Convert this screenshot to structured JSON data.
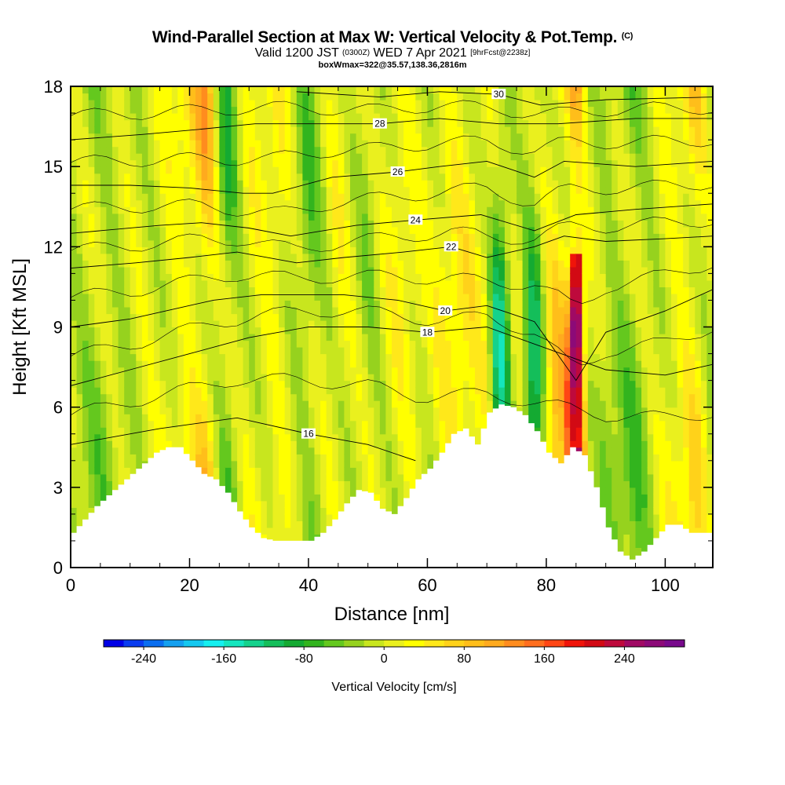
{
  "header": {
    "title": "Wind-Parallel Section at Max W: Vertical Velocity & Pot.Temp.",
    "copyright": "(C)",
    "valid_prefix": "Valid 1200 JST",
    "valid_utc": "(0300Z)",
    "valid_date": "WED 7 Apr 2021",
    "forecast": "[9hrFcst@2238z]",
    "boxinfo": "boxWmax=322@35.57,138.36,2816m"
  },
  "chart_data": {
    "type": "heatmap",
    "xlabel": "Distance [nm]",
    "ylabel": "Height [Kft MSL]",
    "xlim": [
      0,
      108
    ],
    "ylim": [
      0,
      18
    ],
    "xticks": [
      0,
      20,
      40,
      60,
      80,
      100
    ],
    "yticks": [
      0,
      3,
      6,
      9,
      12,
      15,
      18
    ],
    "terrain": {
      "x": [
        0,
        2,
        4,
        6,
        8,
        10,
        12,
        14,
        16,
        18,
        20,
        22,
        24,
        26,
        28,
        30,
        32,
        34,
        36,
        38,
        40,
        42,
        44,
        46,
        48,
        50,
        52,
        54,
        56,
        58,
        60,
        62,
        64,
        66,
        68,
        70,
        72,
        74,
        76,
        78,
        80,
        82,
        84,
        86,
        88,
        90,
        92,
        94,
        96,
        98,
        100,
        102,
        104,
        106,
        108
      ],
      "top": [
        1.3,
        1.8,
        2.3,
        2.7,
        3.1,
        3.5,
        3.9,
        4.3,
        4.5,
        4.5,
        4.0,
        3.5,
        3.3,
        2.8,
        2.1,
        1.5,
        1.1,
        1.0,
        1.0,
        1.0,
        1.0,
        1.3,
        1.8,
        2.4,
        2.9,
        2.8,
        2.2,
        2.0,
        2.6,
        3.3,
        3.7,
        4.3,
        5.0,
        5.2,
        4.6,
        5.8,
        6.1,
        6.0,
        5.7,
        5.1,
        4.3,
        3.9,
        4.5,
        4.2,
        3.0,
        1.5,
        0.6,
        0.3,
        0.6,
        1.1,
        1.6,
        1.6,
        1.3,
        1.3,
        1.3
      ]
    },
    "colorbar": {
      "label": "Vertical Velocity [cm/s]",
      "tick_values": [
        "-240",
        "-160",
        "-80",
        "0",
        "80",
        "160",
        "240"
      ],
      "min": -280,
      "max": 300,
      "colors": [
        "#0000e6",
        "#0a3cf0",
        "#0a6ef0",
        "#14a0f0",
        "#14c8f0",
        "#14f0f0",
        "#14e6be",
        "#14d28c",
        "#14be5a",
        "#14aa32",
        "#32b41e",
        "#64c81e",
        "#96d21e",
        "#c8e61e",
        "#eaf01e",
        "#ffff00",
        "#ffe81a",
        "#ffd21a",
        "#ffbe1a",
        "#ffaa1e",
        "#ff8c1e",
        "#ff6e1e",
        "#ff4614",
        "#f0140a",
        "#d20a14",
        "#be0a3c",
        "#a00a64",
        "#8c0a78",
        "#780a8c"
      ]
    },
    "w_field_description_values_cm_s": {
      "x_columns": [
        0,
        5,
        10,
        15,
        20,
        23,
        26,
        30,
        35,
        40,
        45,
        50,
        55,
        60,
        65,
        70,
        72,
        75,
        78,
        81,
        83,
        85,
        87,
        90,
        95,
        100,
        105,
        108
      ],
      "column_w": [
        -20,
        -40,
        -10,
        10,
        70,
        120,
        -90,
        20,
        40,
        -60,
        30,
        -30,
        40,
        10,
        60,
        20,
        -150,
        20,
        -140,
        100,
        90,
        300,
        10,
        -40,
        -60,
        20,
        80,
        -20
      ]
    },
    "theta_contours": [
      {
        "label": "16",
        "heights_at_x": [
          [
            0,
            4.6
          ],
          [
            15,
            5.2
          ],
          [
            28,
            5.6
          ],
          [
            40,
            5.0
          ],
          [
            50,
            4.6
          ],
          [
            58,
            4.0
          ]
        ]
      },
      {
        "label": "18",
        "heights_at_x": [
          [
            0,
            6.8
          ],
          [
            10,
            7.4
          ],
          [
            20,
            8.0
          ],
          [
            30,
            8.6
          ],
          [
            40,
            9.0
          ],
          [
            50,
            9.0
          ],
          [
            60,
            8.8
          ],
          [
            70,
            9.0
          ],
          [
            80,
            8.2
          ],
          [
            90,
            7.4
          ],
          [
            100,
            7.2
          ],
          [
            108,
            7.6
          ]
        ]
      },
      {
        "label": "20",
        "heights_at_x": [
          [
            0,
            9.0
          ],
          [
            10,
            9.3
          ],
          [
            16,
            9.6
          ],
          [
            24,
            10.0
          ],
          [
            32,
            10.2
          ],
          [
            46,
            10.2
          ],
          [
            55,
            10.0
          ],
          [
            63,
            9.6
          ],
          [
            70,
            9.8
          ],
          [
            78,
            9.2
          ],
          [
            85,
            7.0
          ],
          [
            90,
            8.8
          ],
          [
            100,
            9.6
          ],
          [
            108,
            10.4
          ]
        ]
      },
      {
        "label": "22",
        "heights_at_x": [
          [
            0,
            11.2
          ],
          [
            11,
            11.4
          ],
          [
            20,
            11.6
          ],
          [
            28,
            11.8
          ],
          [
            38,
            11.4
          ],
          [
            46,
            11.6
          ],
          [
            56,
            11.8
          ],
          [
            64,
            12.0
          ],
          [
            70,
            11.6
          ],
          [
            78,
            12.0
          ],
          [
            83,
            12.4
          ],
          [
            90,
            12.2
          ],
          [
            100,
            12.3
          ],
          [
            108,
            12.4
          ]
        ]
      },
      {
        "label": "24",
        "heights_at_x": [
          [
            0,
            12.5
          ],
          [
            15,
            12.8
          ],
          [
            22,
            12.9
          ],
          [
            30,
            12.7
          ],
          [
            37,
            12.4
          ],
          [
            48,
            12.8
          ],
          [
            58,
            13.0
          ],
          [
            69,
            13.2
          ],
          [
            78,
            12.6
          ],
          [
            85,
            13.2
          ],
          [
            95,
            13.4
          ],
          [
            108,
            13.6
          ]
        ]
      },
      {
        "label": "26",
        "heights_at_x": [
          [
            0,
            14.3
          ],
          [
            10,
            14.3
          ],
          [
            20,
            14.2
          ],
          [
            29,
            14.0
          ],
          [
            34,
            14.0
          ],
          [
            44,
            14.6
          ],
          [
            55,
            14.8
          ],
          [
            62,
            15.0
          ],
          [
            70,
            15.2
          ],
          [
            78,
            14.6
          ],
          [
            83,
            15.2
          ],
          [
            95,
            15.0
          ],
          [
            108,
            15.2
          ]
        ]
      },
      {
        "label": "28",
        "heights_at_x": [
          [
            0,
            16.0
          ],
          [
            12,
            16.2
          ],
          [
            22,
            16.4
          ],
          [
            31,
            16.6
          ],
          [
            40,
            16.6
          ],
          [
            52,
            16.6
          ],
          [
            62,
            16.8
          ],
          [
            72,
            16.6
          ],
          [
            82,
            16.6
          ],
          [
            95,
            16.8
          ],
          [
            108,
            16.8
          ]
        ]
      },
      {
        "label": "30",
        "heights_at_x": [
          [
            38,
            17.8
          ],
          [
            52,
            17.6
          ],
          [
            62,
            17.8
          ],
          [
            72,
            17.7
          ],
          [
            79,
            17.3
          ],
          [
            90,
            17.5
          ],
          [
            108,
            17.6
          ]
        ]
      }
    ],
    "annotations": [
      "16",
      "18",
      "20",
      "22",
      "24",
      "26",
      "28",
      "30"
    ]
  }
}
